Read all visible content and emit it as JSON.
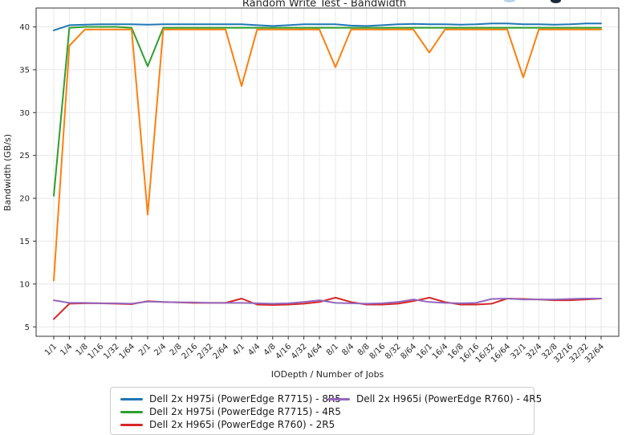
{
  "title": "Random Write Test - Bandwidth",
  "chart_data": {
    "type": "line",
    "title": "Random Write Test - Bandwidth",
    "xlabel": "IODepth / Number of Jobs",
    "ylabel": "Bandwidth (GB/s)",
    "ylim": [
      3.9,
      42.2
    ],
    "yticks": [
      5,
      10,
      15,
      20,
      25,
      30,
      35,
      40
    ],
    "grid": true,
    "legend_position": "bottom, 2 columns, legend box clipped by screenshot bottom edge",
    "note_clipped": "chart title clipped at top edge; a fifth (orange) series is plotted but its legend entry is cut off below the visible area",
    "categories": [
      "1/1",
      "1/4",
      "1/8",
      "1/16",
      "1/32",
      "1/64",
      "2/1",
      "2/4",
      "2/8",
      "2/16",
      "2/32",
      "2/64",
      "4/1",
      "4/4",
      "4/8",
      "4/16",
      "4/32",
      "4/64",
      "8/1",
      "8/4",
      "8/8",
      "8/16",
      "8/32",
      "8/64",
      "16/1",
      "16/4",
      "16/8",
      "16/16",
      "16/32",
      "16/64",
      "32/1",
      "32/4",
      "32/8",
      "32/16",
      "32/32",
      "32/64"
    ],
    "series": [
      {
        "name": "Dell 2x H975i (PowerEdge R7715) - 8R5",
        "color": "#1f77b4",
        "in_legend": true,
        "values": [
          39.6,
          40.2,
          40.25,
          40.3,
          40.3,
          40.3,
          40.25,
          40.3,
          40.3,
          40.3,
          40.3,
          40.3,
          40.3,
          40.2,
          40.1,
          40.2,
          40.3,
          40.3,
          40.3,
          40.15,
          40.1,
          40.2,
          40.3,
          40.35,
          40.3,
          40.3,
          40.25,
          40.3,
          40.4,
          40.4,
          40.3,
          40.3,
          40.25,
          40.3,
          40.4,
          40.4
        ]
      },
      {
        "name": "Dell 2x H975i (PowerEdge R7715) - 4R5",
        "color": "#2ca02c",
        "in_legend": true,
        "values": [
          20.3,
          39.9,
          40.0,
          40.0,
          40.0,
          39.9,
          35.4,
          39.9,
          39.9,
          39.9,
          39.9,
          39.9,
          39.9,
          39.9,
          39.9,
          39.9,
          39.9,
          39.9,
          39.9,
          39.9,
          39.9,
          39.9,
          39.9,
          39.9,
          39.9,
          39.9,
          39.9,
          39.9,
          39.9,
          39.9,
          39.9,
          39.9,
          39.9,
          39.9,
          39.9,
          39.9
        ]
      },
      {
        "name": "Dell 2x H965i (PowerEdge R760) - 2R5",
        "color": "#d62728",
        "in_legend": true,
        "values": [
          5.9,
          7.7,
          7.75,
          7.75,
          7.7,
          7.65,
          8.0,
          7.9,
          7.85,
          7.8,
          7.8,
          7.8,
          8.3,
          7.6,
          7.55,
          7.6,
          7.7,
          7.9,
          8.4,
          7.9,
          7.6,
          7.6,
          7.7,
          8.0,
          8.4,
          7.9,
          7.6,
          7.6,
          7.7,
          8.3,
          8.25,
          8.2,
          8.1,
          8.1,
          8.2,
          8.3
        ]
      },
      {
        "name": "Dell 2x H965i (PowerEdge R760) - 4R5",
        "color": "#9467bd",
        "in_legend": true,
        "values": [
          8.1,
          7.8,
          7.8,
          7.75,
          7.75,
          7.7,
          7.95,
          7.9,
          7.85,
          7.85,
          7.8,
          7.8,
          7.8,
          7.75,
          7.7,
          7.75,
          7.9,
          8.1,
          7.8,
          7.75,
          7.7,
          7.75,
          7.9,
          8.2,
          7.9,
          7.8,
          7.75,
          7.8,
          8.25,
          8.3,
          8.2,
          8.2,
          8.2,
          8.25,
          8.3,
          8.3
        ]
      },
      {
        "name": "(legend entry cut off)",
        "color": "#ff7f0e",
        "in_legend": false,
        "values": [
          10.4,
          37.8,
          39.7,
          39.7,
          39.7,
          39.7,
          18.1,
          39.7,
          39.7,
          39.7,
          39.7,
          39.7,
          33.1,
          39.7,
          39.7,
          39.7,
          39.7,
          39.7,
          35.3,
          39.7,
          39.7,
          39.7,
          39.7,
          39.7,
          37.0,
          39.7,
          39.7,
          39.7,
          39.7,
          39.7,
          34.1,
          39.7,
          39.7,
          39.7,
          39.7,
          39.7
        ]
      }
    ]
  },
  "legend": {
    "entries": [
      {
        "label": "Dell 2x H975i (PowerEdge R7715) - 8R5",
        "color": "#1f77b4"
      },
      {
        "label": "Dell 2x H975i (PowerEdge R7715) - 4R5",
        "color": "#2ca02c"
      },
      {
        "label": "Dell 2x H965i (PowerEdge R760) - 2R5",
        "color": "#d62728"
      },
      {
        "label": "Dell 2x H965i (PowerEdge R760) - 4R5",
        "color": "#9467bd"
      }
    ]
  },
  "colors": {
    "background": "#ffffff",
    "grid": "#e7e7e7",
    "spine": "#333333",
    "text": "#262626",
    "legend_border": "#cccccc"
  }
}
